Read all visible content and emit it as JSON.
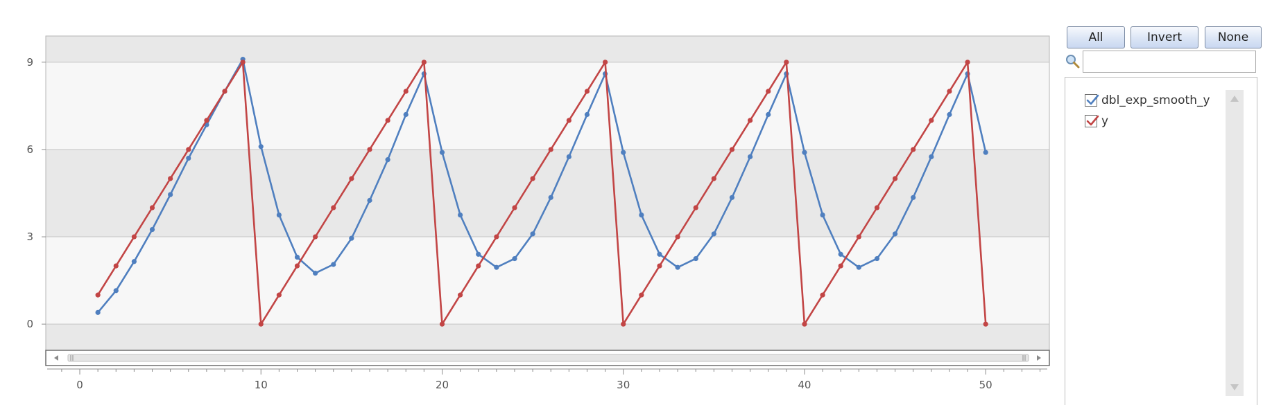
{
  "chart_data": {
    "type": "line",
    "x_ticks": [
      0,
      10,
      20,
      30,
      40,
      50
    ],
    "y_ticks": [
      0,
      3,
      6,
      9
    ],
    "xlim": [
      -1.8,
      53.4
    ],
    "ylim": [
      -0.9,
      9.9
    ],
    "grid": true,
    "series": [
      {
        "name": "dbl_exp_smooth_y",
        "color": "#4f7fbf",
        "x": [
          1,
          2,
          3,
          4,
          5,
          6,
          7,
          8,
          9,
          10,
          11,
          12,
          13,
          14,
          15,
          16,
          17,
          18,
          19,
          20,
          21,
          22,
          23,
          24,
          25,
          26,
          27,
          28,
          29,
          30,
          31,
          32,
          33,
          34,
          35,
          36,
          37,
          38,
          39,
          40,
          41,
          42,
          43,
          44,
          45,
          46,
          47,
          48,
          49,
          50
        ],
        "y": [
          0.4,
          1.15,
          2.15,
          3.25,
          4.45,
          5.7,
          6.85,
          8.0,
          9.1,
          6.1,
          3.75,
          2.3,
          1.75,
          2.05,
          2.95,
          4.25,
          5.65,
          7.2,
          8.6,
          5.9,
          3.75,
          2.4,
          1.95,
          2.25,
          3.1,
          4.35,
          5.75,
          7.2,
          8.6,
          5.9,
          3.75,
          2.4,
          1.95,
          2.25,
          3.1,
          4.35,
          5.75,
          7.2,
          8.6,
          5.9,
          3.75,
          2.4,
          1.95,
          2.25,
          3.1,
          4.35,
          5.75,
          7.2,
          8.6,
          5.9
        ]
      },
      {
        "name": "y",
        "color": "#c24545",
        "x": [
          1,
          2,
          3,
          4,
          5,
          6,
          7,
          8,
          9,
          10,
          11,
          12,
          13,
          14,
          15,
          16,
          17,
          18,
          19,
          20,
          21,
          22,
          23,
          24,
          25,
          26,
          27,
          28,
          29,
          30,
          31,
          32,
          33,
          34,
          35,
          36,
          37,
          38,
          39,
          40,
          41,
          42,
          43,
          44,
          45,
          46,
          47,
          48,
          49,
          50
        ],
        "y": [
          1,
          2,
          3,
          4,
          5,
          6,
          7,
          8,
          9,
          0,
          1,
          2,
          3,
          4,
          5,
          6,
          7,
          8,
          9,
          0,
          1,
          2,
          3,
          4,
          5,
          6,
          7,
          8,
          9,
          0,
          1,
          2,
          3,
          4,
          5,
          6,
          7,
          8,
          9,
          0,
          1,
          2,
          3,
          4,
          5,
          6,
          7,
          8,
          9,
          0
        ]
      }
    ]
  },
  "controls": {
    "all_label": "All",
    "invert_label": "Invert",
    "none_label": "None",
    "search_value": ""
  },
  "legend": {
    "items": [
      {
        "label": "dbl_exp_smooth_y",
        "checked": true,
        "color": "#4f7fbf"
      },
      {
        "label": "y",
        "checked": true,
        "color": "#c24545"
      }
    ]
  },
  "icons": {
    "search": "search-icon",
    "scroll_left": "chevron-left-icon",
    "scroll_right": "chevron-right-icon",
    "scroll_up": "chevron-up-icon",
    "scroll_down": "chevron-down-icon"
  }
}
